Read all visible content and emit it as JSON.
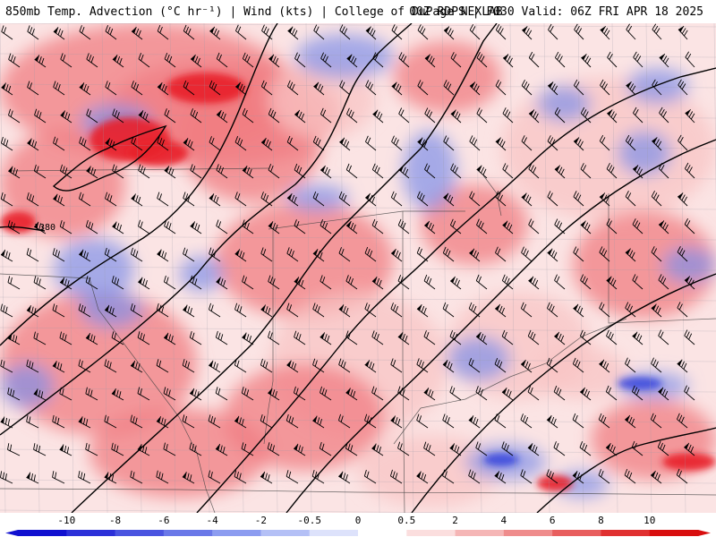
{
  "header": {
    "left_title": "850mb Temp. Advection (°C hr⁻¹) | Wind (kts) | College of DuPage NEXLAB",
    "right_title": "00Z RDPS | F030 Valid: 06Z FRI APR 18 2025"
  },
  "map": {
    "contour_label": "1380",
    "colors": {
      "warm_strong": "#e8202a",
      "warm_mid": "#f07c82",
      "warm_light": "#f8c4c4",
      "neutral": "#ffffff",
      "cool_light": "#c8d0f4",
      "cool_mid": "#8090e8",
      "cool_strong": "#2030d8"
    }
  },
  "colorbar": {
    "ticks": [
      "-10",
      "-8",
      "-6",
      "-4",
      "-2",
      "-0.5",
      "0",
      "0.5",
      "2",
      "4",
      "6",
      "8",
      "10"
    ],
    "colors": [
      "#1010d0",
      "#2c30d8",
      "#4a54e0",
      "#6a78e8",
      "#8c9cf0",
      "#b4c0f6",
      "#dde2fb",
      "#ffffff",
      "#fbdede",
      "#f5b6b6",
      "#ef8c8c",
      "#e85e5e",
      "#e03030",
      "#d80e0e"
    ]
  }
}
